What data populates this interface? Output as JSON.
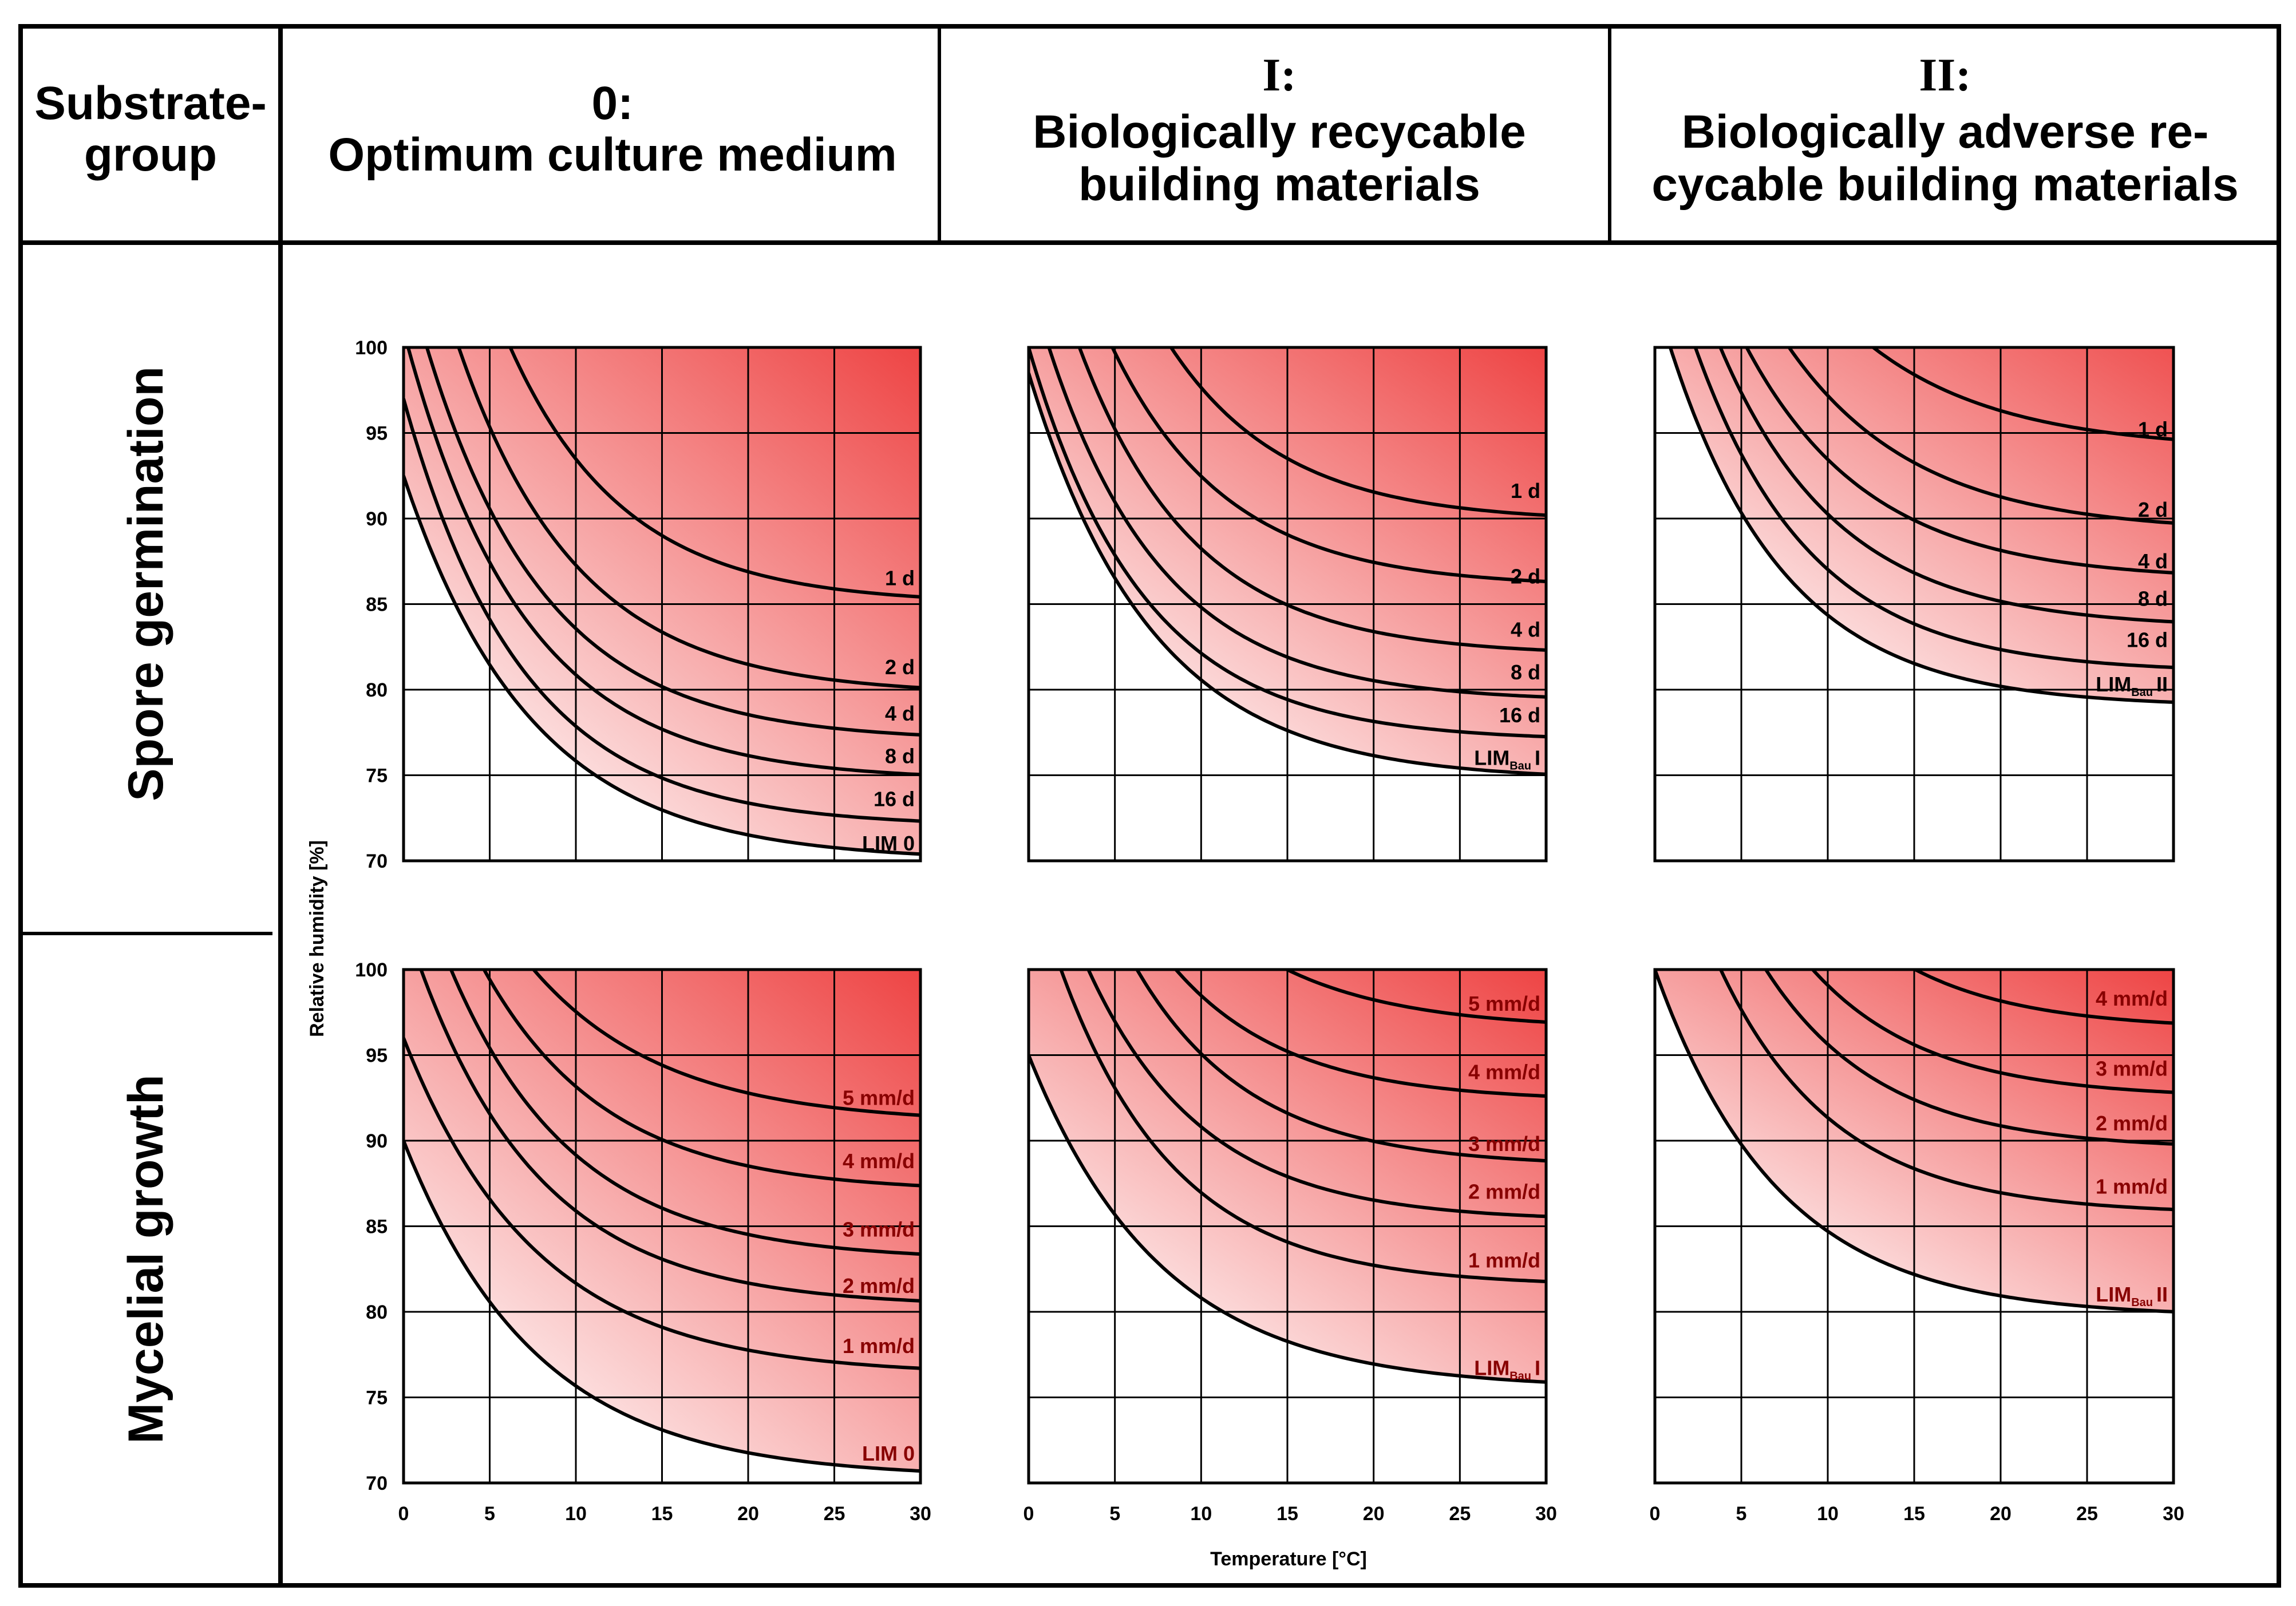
{
  "header": {
    "col0_title": "Substrate-",
    "col0_title2": "group",
    "col1_num": "0:",
    "col1_title": "Optimum culture medium",
    "col2_num": "I:",
    "col2_title1": "Biologically recycable",
    "col2_title2": "building materials",
    "col3_num": "II:",
    "col3_title1": "Biologically adverse re-",
    "col3_title2": "cycable building materials"
  },
  "rows": {
    "row1_label": "Spore germination",
    "row2_label": "Mycelial growth"
  },
  "axes": {
    "ylabel": "Relative humidity [%]",
    "xlabel": "Temperature [°C]"
  },
  "colors": {
    "fill_strong": "#ee4444",
    "fill_weak": "#ffffff",
    "line": "#000000",
    "label_mycelial": "#880000"
  },
  "chart_data": [
    {
      "type": "line",
      "id": "germ-0",
      "title": "Spore germination – 0: Optimum culture medium",
      "xlabel": "Temperature [°C]",
      "ylabel": "Relative humidity [%]",
      "xlim": [
        0,
        30
      ],
      "ylim": [
        70,
        100
      ],
      "xticks": [
        "0",
        "5",
        "10",
        "15",
        "20",
        "25",
        "30"
      ],
      "yticks": [
        "70",
        "75",
        "80",
        "85",
        "90",
        "95",
        "100"
      ],
      "series": [
        {
          "name": "1 d",
          "asym": 85.0,
          "y0": 123,
          "k": 0.15,
          "label_y": 86.5
        },
        {
          "name": "2 d",
          "asym": 79.7,
          "y0": 112,
          "k": 0.145,
          "label_y": 81.3
        },
        {
          "name": "4 d",
          "asym": 77.0,
          "y0": 105,
          "k": 0.145,
          "label_y": 78.6
        },
        {
          "name": "8 d",
          "asym": 74.7,
          "y0": 101,
          "k": 0.145,
          "label_y": 76.1
        },
        {
          "name": "16 d",
          "asym": 72.0,
          "y0": 97,
          "k": 0.145,
          "label_y": 73.6
        },
        {
          "name": "LIM 0",
          "asym": 70.0,
          "y0": 92.5,
          "k": 0.135,
          "label_y": 71.0
        }
      ]
    },
    {
      "type": "line",
      "id": "germ-I",
      "title": "Spore germination – I: Biologically recycable building materials",
      "xlabel": "Temperature [°C]",
      "ylabel": "Relative humidity [%]",
      "xlim": [
        0,
        30
      ],
      "ylim": [
        70,
        100
      ],
      "xticks": [
        "0",
        "5",
        "10",
        "15",
        "20",
        "25",
        "30"
      ],
      "yticks": [
        "70",
        "75",
        "80",
        "85",
        "90",
        "95",
        "100"
      ],
      "series": [
        {
          "name": "1 d",
          "asym": 89.8,
          "y0": 125,
          "k": 0.15,
          "label_y": 91.6
        },
        {
          "name": "2 d",
          "asym": 86.0,
          "y0": 115,
          "k": 0.15,
          "label_y": 86.6
        },
        {
          "name": "4 d",
          "asym": 82.0,
          "y0": 110,
          "k": 0.15,
          "label_y": 83.5
        },
        {
          "name": "8 d",
          "asym": 79.3,
          "y0": 104,
          "k": 0.15,
          "label_y": 81.0
        },
        {
          "name": "16 d",
          "asym": 77.0,
          "y0": 100,
          "k": 0.15,
          "label_y": 78.5
        },
        {
          "name": "LIM",
          "sub": "Bau",
          "suffix": "I",
          "asym": 74.7,
          "y0": 98.5,
          "k": 0.14,
          "label_y": 76.0
        }
      ]
    },
    {
      "type": "line",
      "id": "germ-II",
      "title": "Spore germination – II: Biologically adverse recycable building materials",
      "xlabel": "Temperature [°C]",
      "ylabel": "Relative humidity [%]",
      "xlim": [
        0,
        30
      ],
      "ylim": [
        70,
        100
      ],
      "xticks": [
        "0",
        "5",
        "10",
        "15",
        "20",
        "25",
        "30"
      ],
      "yticks": [
        "70",
        "75",
        "80",
        "85",
        "90",
        "95",
        "100"
      ],
      "series": [
        {
          "name": "1 d",
          "asym": 94.0,
          "y0": 125,
          "k": 0.13,
          "label_y": 95.2
        },
        {
          "name": "2 d",
          "asym": 89.2,
          "y0": 120,
          "k": 0.135,
          "label_y": 90.5
        },
        {
          "name": "4 d",
          "asym": 86.4,
          "y0": 115,
          "k": 0.14,
          "label_y": 87.5
        },
        {
          "name": "8 d",
          "asym": 83.6,
          "y0": 112,
          "k": 0.145,
          "label_y": 85.3
        },
        {
          "name": "16 d",
          "asym": 81.0,
          "y0": 108,
          "k": 0.15,
          "label_y": 82.9
        },
        {
          "name": "LIM",
          "sub": "Bau",
          "suffix": "II",
          "asym": 79.0,
          "y0": 103,
          "k": 0.15,
          "label_y": 80.3
        }
      ]
    },
    {
      "type": "line",
      "id": "myc-0",
      "title": "Mycelial growth – 0: Optimum culture medium",
      "xlabel": "Temperature [°C]",
      "ylabel": "Relative humidity [%]",
      "xlim": [
        0,
        30
      ],
      "ylim": [
        70,
        100
      ],
      "xticks": [
        "0",
        "5",
        "10",
        "15",
        "20",
        "25",
        "30"
      ],
      "yticks": [
        "70",
        "75",
        "80",
        "85",
        "90",
        "95",
        "100"
      ],
      "series": [
        {
          "name": "5 mm/d",
          "asym": 91.0,
          "y0": 115,
          "k": 0.13,
          "label_y": 92.5
        },
        {
          "name": "4 mm/d",
          "asym": 87.0,
          "y0": 112,
          "k": 0.14,
          "label_y": 88.8
        },
        {
          "name": "3 mm/d",
          "asym": 83.0,
          "y0": 108,
          "k": 0.14,
          "label_y": 84.8
        },
        {
          "name": "2 mm/d",
          "asym": 80.3,
          "y0": 103,
          "k": 0.14,
          "label_y": 81.5
        },
        {
          "name": "1 mm/d",
          "asym": 76.3,
          "y0": 96,
          "k": 0.13,
          "label_y": 78.0
        },
        {
          "name": "LIM 0",
          "asym": 70.3,
          "y0": 90,
          "k": 0.13,
          "label_y": 71.7
        }
      ]
    },
    {
      "type": "line",
      "id": "myc-I",
      "title": "Mycelial growth – I: Biologically recycable building materials",
      "xlabel": "Temperature [°C]",
      "ylabel": "Relative humidity [%]",
      "xlim": [
        0,
        30
      ],
      "ylim": [
        70,
        100
      ],
      "xticks": [
        "0",
        "5",
        "10",
        "15",
        "20",
        "25",
        "30"
      ],
      "yticks": [
        "70",
        "75",
        "80",
        "85",
        "90",
        "95",
        "100"
      ],
      "series": [
        {
          "name": "5 mm/d",
          "asym": 96.5,
          "y0": 125,
          "k": 0.14,
          "label_y": 98.0
        },
        {
          "name": "4 mm/d",
          "asym": 92.3,
          "y0": 120,
          "k": 0.15,
          "label_y": 94.0
        },
        {
          "name": "3 mm/d",
          "asym": 88.5,
          "y0": 118,
          "k": 0.15,
          "label_y": 89.8
        },
        {
          "name": "2 mm/d",
          "asym": 85.3,
          "y0": 110,
          "k": 0.15,
          "label_y": 87.0
        },
        {
          "name": "1 mm/d",
          "asym": 81.5,
          "y0": 106,
          "k": 0.15,
          "label_y": 83.0
        },
        {
          "name": "LIM",
          "sub": "Bau",
          "suffix": "I",
          "asym": 75.5,
          "y0": 95,
          "k": 0.13,
          "label_y": 76.7
        }
      ]
    },
    {
      "type": "line",
      "id": "myc-II",
      "title": "Mycelial growth – II: Biologically adverse recycable building materials",
      "xlabel": "Temperature [°C]",
      "ylabel": "Relative humidity [%]",
      "xlim": [
        0,
        30
      ],
      "ylim": [
        70,
        100
      ],
      "xticks": [
        "0",
        "5",
        "10",
        "15",
        "20",
        "25",
        "30"
      ],
      "yticks": [
        "70",
        "75",
        "80",
        "85",
        "90",
        "95",
        "100"
      ],
      "series": [
        {
          "name": "4 mm/d",
          "asym": 96.5,
          "y0": 130,
          "k": 0.15,
          "label_y": 98.3
        },
        {
          "name": "3 mm/d",
          "asym": 92.5,
          "y0": 122,
          "k": 0.15,
          "label_y": 94.2
        },
        {
          "name": "2 mm/d",
          "asym": 89.5,
          "y0": 117,
          "k": 0.15,
          "label_y": 91.0
        },
        {
          "name": "1 mm/d",
          "asym": 85.7,
          "y0": 111,
          "k": 0.15,
          "label_y": 87.3
        },
        {
          "name": "LIM",
          "sub": "Bau",
          "suffix": "II",
          "asym": 79.7,
          "y0": 100,
          "k": 0.14,
          "label_y": 81.0
        }
      ]
    }
  ]
}
